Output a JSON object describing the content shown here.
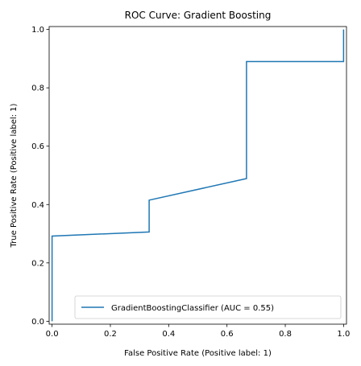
{
  "chart_data": {
    "type": "line",
    "title": "ROC Curve: Gradient Boosting",
    "xlabel": "False Positive Rate (Positive label: 1)",
    "ylabel": "True Positive Rate (Positive label: 1)",
    "xlim": [
      -0.01,
      1.01
    ],
    "ylim": [
      -0.01,
      1.01
    ],
    "x_ticks": [
      "0.0",
      "0.2",
      "0.4",
      "0.6",
      "0.8",
      "1.0"
    ],
    "y_ticks": [
      "0.0",
      "0.2",
      "0.4",
      "0.6",
      "0.8",
      "1.0"
    ],
    "grid": false,
    "legend_position": "lower right",
    "series": [
      {
        "name": "GradientBoostingClassifier (AUC = 0.55)",
        "color": "#1f77b4",
        "x": [
          0.0,
          0.0,
          0.0,
          0.333,
          0.333,
          0.667,
          0.667,
          1.0,
          1.0
        ],
        "y": [
          0.0,
          0.0,
          0.292,
          0.306,
          0.415,
          0.489,
          0.89,
          0.89,
          1.0
        ]
      }
    ]
  }
}
